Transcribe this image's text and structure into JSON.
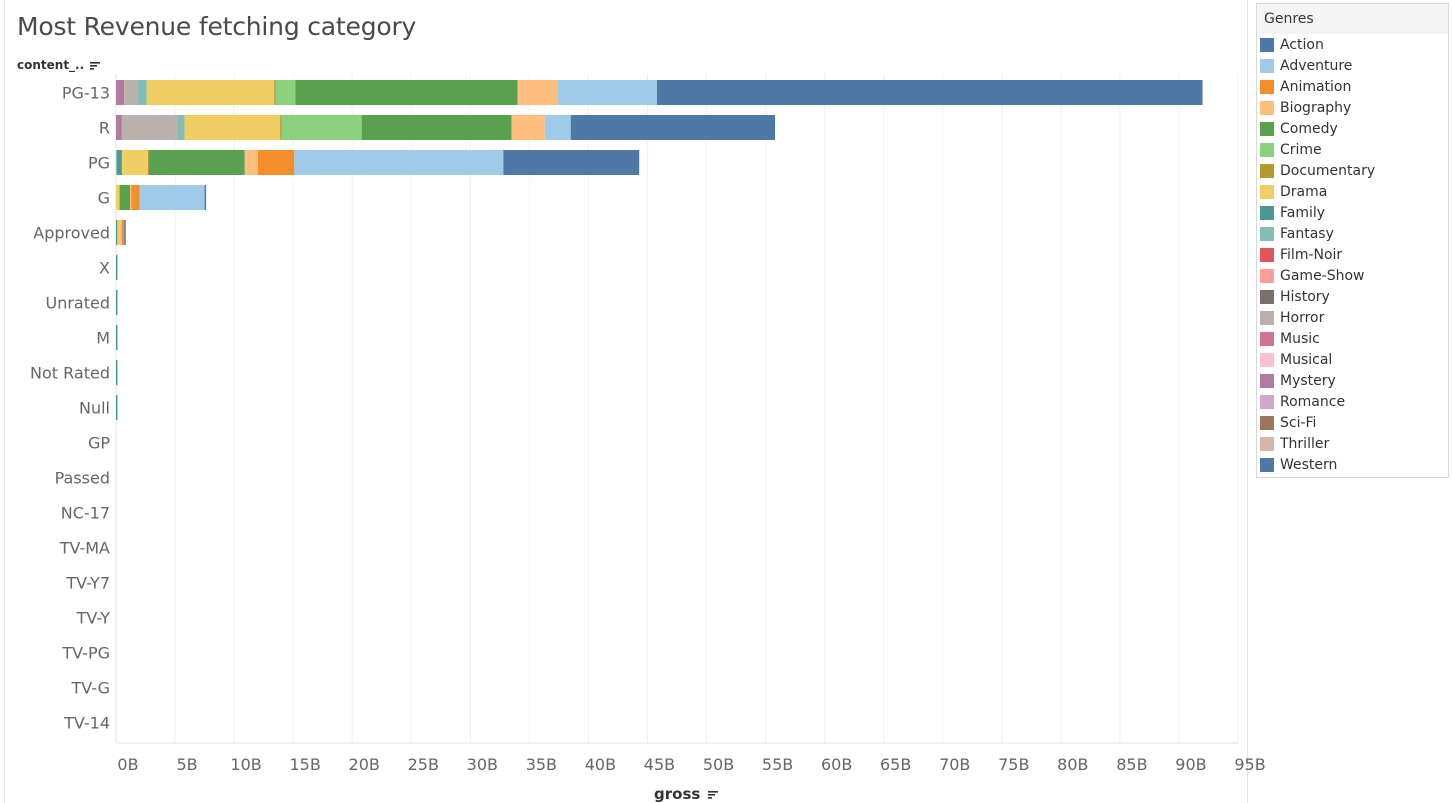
{
  "title": "Most Revenue fetching category",
  "row_header": "content_..",
  "x_axis_title": "gross",
  "legend": {
    "title": "Genres",
    "items": [
      {
        "label": "Action",
        "color": "#4e79a7"
      },
      {
        "label": "Adventure",
        "color": "#a0cbe8"
      },
      {
        "label": "Animation",
        "color": "#f28e2b"
      },
      {
        "label": "Biography",
        "color": "#ffbe7d"
      },
      {
        "label": "Comedy",
        "color": "#59a14f"
      },
      {
        "label": "Crime",
        "color": "#8cd17d"
      },
      {
        "label": "Documentary",
        "color": "#b6992d"
      },
      {
        "label": "Drama",
        "color": "#f1ce63"
      },
      {
        "label": "Family",
        "color": "#499894"
      },
      {
        "label": "Fantasy",
        "color": "#86bcb6"
      },
      {
        "label": "Film-Noir",
        "color": "#e15759"
      },
      {
        "label": "Game-Show",
        "color": "#ff9d9a"
      },
      {
        "label": "History",
        "color": "#79706e"
      },
      {
        "label": "Horror",
        "color": "#bab0ac"
      },
      {
        "label": "Music",
        "color": "#d37295"
      },
      {
        "label": "Musical",
        "color": "#fabfd2"
      },
      {
        "label": "Mystery",
        "color": "#b07aa1"
      },
      {
        "label": "Romance",
        "color": "#d4a6c8"
      },
      {
        "label": "Sci-Fi",
        "color": "#9d7660"
      },
      {
        "label": "Thriller",
        "color": "#d7b5a6"
      },
      {
        "label": "Western",
        "color": "#4e79a7"
      }
    ]
  },
  "chart_data": {
    "type": "bar",
    "orientation": "horizontal",
    "stacked": true,
    "title": "Most Revenue fetching category",
    "xlabel": "gross",
    "ylabel": "content_..",
    "xlim": [
      0,
      95
    ],
    "x_unit": "B",
    "x_ticks": [
      "0B",
      "5B",
      "10B",
      "15B",
      "20B",
      "25B",
      "30B",
      "35B",
      "40B",
      "45B",
      "50B",
      "55B",
      "60B",
      "65B",
      "70B",
      "75B",
      "80B",
      "85B",
      "90B",
      "95B"
    ],
    "grid": "vertical",
    "legend_position": "right",
    "categories": [
      "PG-13",
      "R",
      "PG",
      "G",
      "Approved",
      "X",
      "Unrated",
      "M",
      "Not Rated",
      "Null",
      "GP",
      "Passed",
      "NC-17",
      "TV-MA",
      "TV-Y7",
      "TV-Y",
      "TV-PG",
      "TV-G",
      "TV-14"
    ],
    "series": [
      {
        "name": "Mystery",
        "values": [
          0.7,
          0.5,
          0.0,
          0.0,
          0.0,
          0,
          0,
          0,
          0,
          0,
          0,
          0,
          0,
          0,
          0,
          0,
          0,
          0,
          0
        ]
      },
      {
        "name": "Horror",
        "values": [
          1.1,
          4.7,
          0.0,
          0.0,
          0.0,
          0,
          0,
          0,
          0,
          0,
          0,
          0,
          0,
          0,
          0,
          0,
          0,
          0,
          0
        ]
      },
      {
        "name": "Fantasy",
        "values": [
          0.8,
          0.6,
          0.1,
          0.0,
          0.0,
          0,
          0,
          0,
          0,
          0,
          0,
          0,
          0,
          0,
          0,
          0,
          0,
          0,
          0
        ]
      },
      {
        "name": "Family",
        "values": [
          0.0,
          0.0,
          0.4,
          0.0,
          0.1,
          0.1,
          0.1,
          0.05,
          0.05,
          0.05,
          0,
          0,
          0,
          0,
          0,
          0,
          0,
          0,
          0
        ]
      },
      {
        "name": "Drama",
        "values": [
          10.8,
          8.1,
          2.2,
          0.3,
          0.2,
          0,
          0,
          0,
          0,
          0,
          0,
          0,
          0,
          0,
          0,
          0,
          0,
          0,
          0
        ]
      },
      {
        "name": "Documentary",
        "values": [
          0.1,
          0.1,
          0.1,
          0.0,
          0.0,
          0,
          0,
          0,
          0,
          0,
          0,
          0,
          0,
          0,
          0,
          0,
          0,
          0,
          0
        ]
      },
      {
        "name": "Crime",
        "values": [
          1.7,
          6.8,
          0.0,
          0.0,
          0.0,
          0,
          0,
          0,
          0,
          0,
          0,
          0,
          0,
          0,
          0,
          0,
          0,
          0,
          0
        ]
      },
      {
        "name": "Comedy",
        "values": [
          18.8,
          12.7,
          8.1,
          0.9,
          0.0,
          0,
          0,
          0,
          0,
          0,
          0,
          0,
          0,
          0,
          0,
          0,
          0,
          0,
          0
        ]
      },
      {
        "name": "Biography",
        "values": [
          3.4,
          2.8,
          1.1,
          0.1,
          0.2,
          0,
          0,
          0,
          0,
          0,
          0,
          0,
          0,
          0,
          0,
          0,
          0,
          0,
          0
        ]
      },
      {
        "name": "Animation",
        "values": [
          0.0,
          0.0,
          3.1,
          0.7,
          0.2,
          0,
          0,
          0,
          0,
          0,
          0,
          0,
          0,
          0,
          0,
          0,
          0,
          0,
          0
        ]
      },
      {
        "name": "Adventure",
        "values": [
          8.4,
          2.2,
          17.7,
          5.5,
          0.0,
          0,
          0,
          0,
          0,
          0,
          0,
          0,
          0,
          0,
          0,
          0,
          0,
          0,
          0
        ]
      },
      {
        "name": "Action",
        "values": [
          46.2,
          17.3,
          11.5,
          0.1,
          0.1,
          0,
          0,
          0,
          0,
          0,
          0,
          0,
          0,
          0,
          0,
          0,
          0,
          0,
          0
        ]
      }
    ]
  }
}
